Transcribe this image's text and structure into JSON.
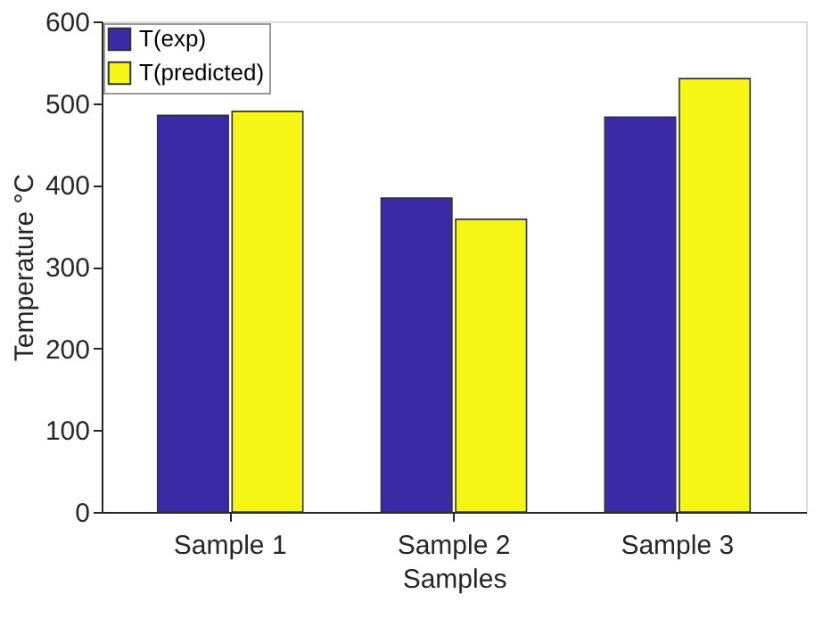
{
  "chart_data": {
    "type": "bar",
    "xlabel": "Samples",
    "ylabel": "Temperature °C",
    "categories": [
      "Sample 1",
      "Sample 2",
      "Sample 3"
    ],
    "series": [
      {
        "name": "T(exp)",
        "color": "#3b2aa6",
        "values": [
          485,
          384,
          483
        ]
      },
      {
        "name": "T(predicted)",
        "color": "#f5f516",
        "values": [
          490,
          358,
          530
        ]
      }
    ],
    "ylim": [
      0,
      600
    ],
    "yticks": [
      0,
      100,
      200,
      300,
      400,
      500,
      600
    ],
    "grid": false,
    "legend": "top left"
  }
}
